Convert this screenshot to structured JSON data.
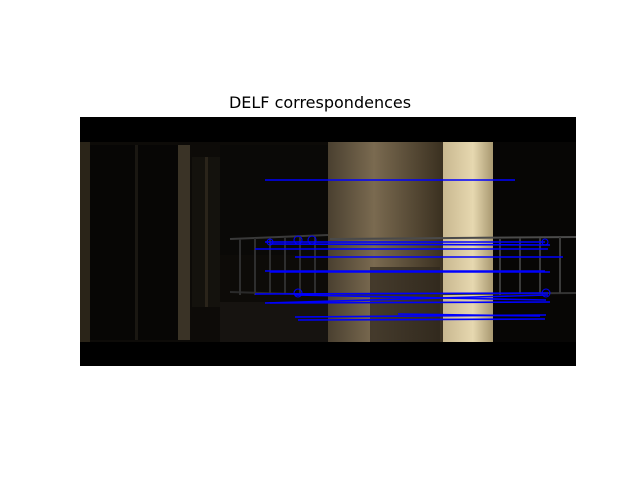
{
  "figure": {
    "title": "DELF correspondences"
  },
  "colors": {
    "match_line": "#0000ff",
    "background": "#ffffff",
    "image_black": "#000000"
  },
  "image_description_tags": [
    "dark-room-left-image",
    "lit-door-right-image"
  ]
}
